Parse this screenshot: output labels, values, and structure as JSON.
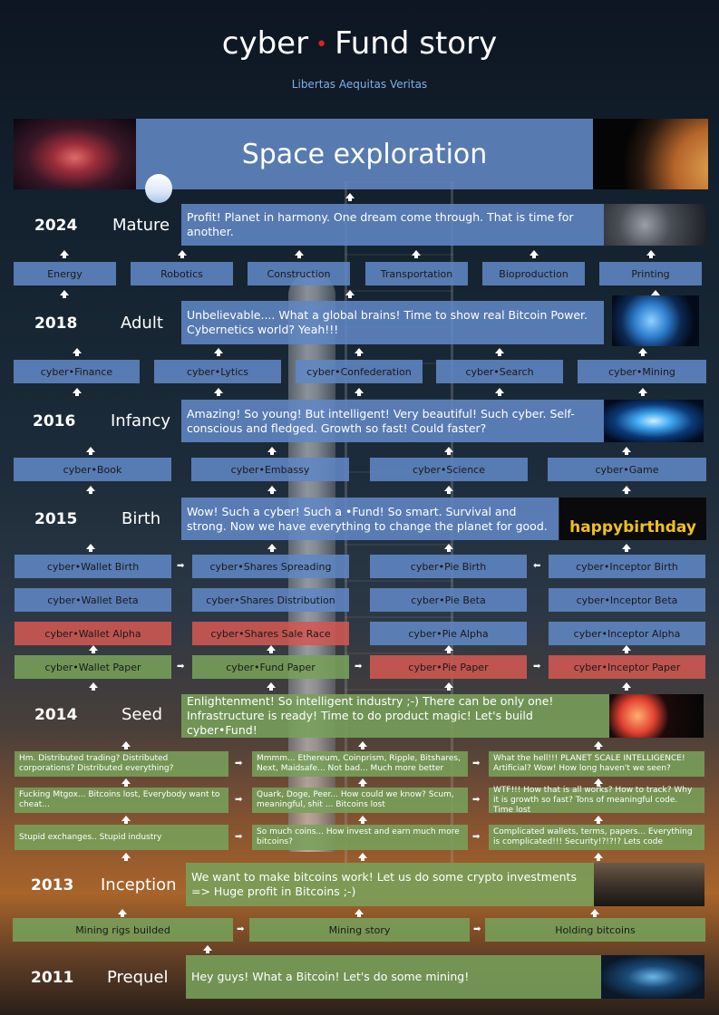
{
  "header": {
    "title_left": "cyber",
    "title_dot": "•",
    "title_right": "Fund story",
    "subtitle": "Libertas Aequitas Veritas"
  },
  "banner": {
    "label": "Space exploration"
  },
  "rows": {
    "r2024": {
      "year": "2024",
      "stage": "Mature",
      "message": "Profit! Planet in harmony. One dream come through. That is time for another.",
      "boxes": [
        "Energy",
        "Robotics",
        "Construction",
        "Transportation",
        "Bioproduction",
        "Printing"
      ]
    },
    "r2018": {
      "year": "2018",
      "stage": "Adult",
      "message": "Unbelievable.... What a global brains! Time to show real Bitcoin Power. Cybernetics world? Yeah!!!",
      "boxes": [
        "cyber•Finance",
        "cyber•Lytics",
        "cyber•Confederation",
        "cyber•Search",
        "cyber•Mining"
      ]
    },
    "r2016": {
      "year": "2016",
      "stage": "Infancy",
      "message": "Amazing! So young! But intelligent! Very beautiful! Such cyber. Self-conscious and fledged. Growth so fast! Could faster?",
      "boxes": [
        "cyber•Book",
        "cyber•Embassy",
        "cyber•Science",
        "cyber•Game"
      ]
    },
    "r2015": {
      "year": "2015",
      "stage": "Birth",
      "message": "Wow! Such a cyber! Such a •Fund! So smart. Survival and strong. Now we have everything to change the planet for good.",
      "birthday_text": "happybirthday",
      "wallet": [
        "cyber•Wallet Birth",
        "cyber•Wallet Beta",
        "cyber•Wallet Alpha",
        "cyber•Wallet Paper"
      ],
      "shares": [
        "cyber•Shares Spreading",
        "cyber•Shares Distribution",
        "cyber•Shares Sale Race",
        "cyber•Fund Paper"
      ],
      "pie": [
        "cyber•Pie Birth",
        "cyber•Pie Beta",
        "cyber•Pie Alpha",
        "cyber•Pie Paper"
      ],
      "inceptor": [
        "cyber•Inceptor Birth",
        "cyber•Inceptor Beta",
        "cyber•Inceptor Alpha",
        "cyber•Inceptor Paper"
      ]
    },
    "r2014": {
      "year": "2014",
      "stage": "Seed",
      "message": "Enlightenment! So intelligent industry ;-) There can be only one! Infrastructure is ready! Time to do product magic! Let's build cyber•Fund!",
      "notes_left": [
        "Hm. Distributed trading? Distributed corporations? Distributed everything?",
        "Fucking Mtgox... Bitcoins lost, Everybody want to cheat...",
        "Stupid exchanges.. Stupid industry"
      ],
      "notes_mid": [
        "Mmmm... Ethereum, Coinprism, Ripple, Bitshares, Next, Maidsafe... Not bad... Much more better",
        "Quark, Doge, Peer... How could we know? Scum, meaningful, shit ... Bitcoins lost",
        "So much coins... How invest and earn much more bitcoins?"
      ],
      "notes_right": [
        "What the hell!!! PLANET SCALE INTELLIGENCE! Artificial? Wow! How long haven't we seen?",
        "WTF!!! How that is all works? How to track? Why it is growth so fast? Tons of meaningful code. Time lost",
        "Complicated wallets, terms, papers... Everything is complicated!!! Security!?!?!?  Lets code"
      ]
    },
    "r2013": {
      "year": "2013",
      "stage": "Inception",
      "message": "We want to make bitcoins work! Let us do some crypto investments => Huge profit in Bitcoins ;-)",
      "boxes": [
        "Mining rigs builded",
        "Mining story",
        "Holding bitcoins"
      ]
    },
    "r2011": {
      "year": "2011",
      "stage": "Prequel",
      "message": "Hey guys! What a Bitcoin! Let's do some mining!"
    }
  },
  "colors": {
    "blue": "#6086c4",
    "green": "#78a05a",
    "red": "#d25852",
    "title_dot": "#e02020",
    "subtitle": "#7fb0e8"
  },
  "icons": [
    "up-arrow-icon",
    "right-arrow-icon",
    "left-arrow-icon"
  ]
}
